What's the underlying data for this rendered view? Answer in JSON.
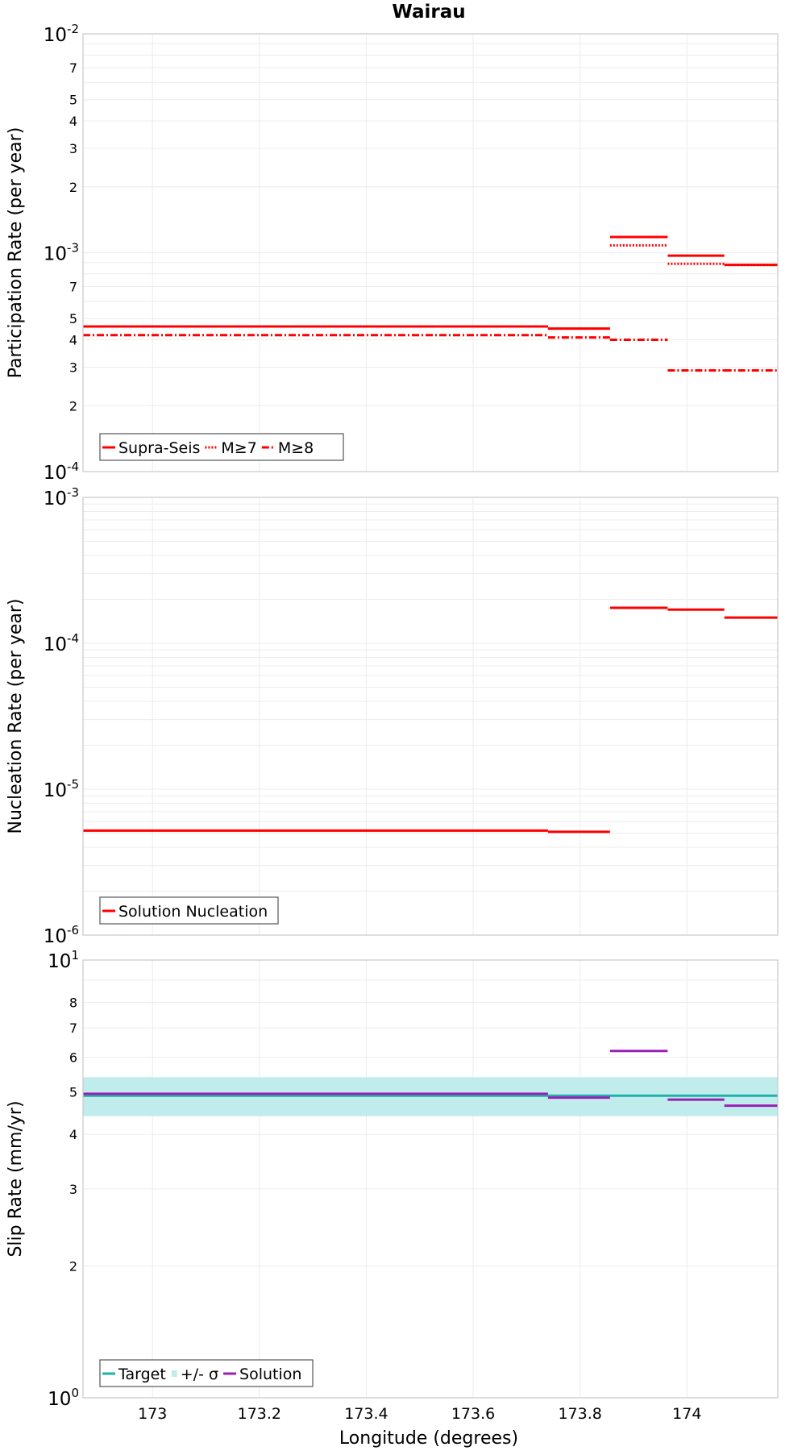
{
  "colors": {
    "participation": "#ff0000",
    "nucleation": "#ff0000",
    "target": "#20b2aa",
    "sigma_band": "#c0ecec",
    "solution": "#9b1fb4",
    "grid": "#ececec",
    "frame": "#c8c8c8"
  },
  "chart_data": [
    {
      "type": "line",
      "title": "Wairau",
      "xlabel": "",
      "ylabel": "Participation Rate (per year)",
      "xlim": [
        172.87,
        174.17
      ],
      "ylim": [
        0.0001,
        0.01
      ],
      "y_scale": "log",
      "grid": true,
      "legend_position": "bottom-left",
      "x_ticks": [
        173,
        173.2,
        173.4,
        173.6,
        173.8,
        174
      ],
      "y_ticks": [
        {
          "value": 0.0001,
          "base": "10",
          "exp": "-4"
        },
        {
          "value": 0.0002,
          "label": "2"
        },
        {
          "value": 0.0003,
          "label": "3"
        },
        {
          "value": 0.0004,
          "label": "4"
        },
        {
          "value": 0.0005,
          "label": "5"
        },
        {
          "value": 0.0007,
          "label": "7"
        },
        {
          "value": 0.001,
          "base": "10",
          "exp": "-3"
        },
        {
          "value": 0.002,
          "label": "2"
        },
        {
          "value": 0.003,
          "label": "3"
        },
        {
          "value": 0.004,
          "label": "4"
        },
        {
          "value": 0.005,
          "label": "5"
        },
        {
          "value": 0.007,
          "label": "7"
        },
        {
          "value": 0.01,
          "base": "10",
          "exp": "-2"
        }
      ],
      "series": [
        {
          "name": "Supra-Seis",
          "style": "solid",
          "segments": [
            {
              "x0": 172.87,
              "x1": 173.74,
              "y": 0.00046
            },
            {
              "x0": 173.74,
              "x1": 173.856,
              "y": 0.00045
            },
            {
              "x0": 173.856,
              "x1": 173.964,
              "y": 0.00118
            },
            {
              "x0": 173.964,
              "x1": 174.07,
              "y": 0.00097
            },
            {
              "x0": 174.07,
              "x1": 174.17,
              "y": 0.00088
            }
          ]
        },
        {
          "name": "M≥7",
          "style": "dotted",
          "segments": [
            {
              "x0": 172.87,
              "x1": 173.74,
              "y": 0.00046
            },
            {
              "x0": 173.74,
              "x1": 173.856,
              "y": 0.00045
            },
            {
              "x0": 173.856,
              "x1": 173.964,
              "y": 0.00108
            },
            {
              "x0": 173.964,
              "x1": 174.07,
              "y": 0.00089
            },
            {
              "x0": 174.07,
              "x1": 174.17,
              "y": 0.00088
            }
          ]
        },
        {
          "name": "M≥8",
          "style": "dashdot",
          "segments": [
            {
              "x0": 172.87,
              "x1": 173.74,
              "y": 0.00042
            },
            {
              "x0": 173.74,
              "x1": 173.856,
              "y": 0.00041
            },
            {
              "x0": 173.856,
              "x1": 173.964,
              "y": 0.0004
            },
            {
              "x0": 173.964,
              "x1": 174.07,
              "y": 0.00029
            },
            {
              "x0": 174.07,
              "x1": 174.17,
              "y": 0.00029
            }
          ]
        }
      ]
    },
    {
      "type": "line",
      "title": "",
      "xlabel": "",
      "ylabel": "Nucleation Rate (per year)",
      "xlim": [
        172.87,
        174.17
      ],
      "ylim": [
        1e-06,
        0.001
      ],
      "y_scale": "log",
      "grid": true,
      "legend_position": "bottom-left",
      "x_ticks": [
        173,
        173.2,
        173.4,
        173.6,
        173.8,
        174
      ],
      "y_ticks": [
        {
          "value": 1e-06,
          "base": "10",
          "exp": "-6"
        },
        {
          "value": 1e-05,
          "base": "10",
          "exp": "-5"
        },
        {
          "value": 0.0001,
          "base": "10",
          "exp": "-4"
        },
        {
          "value": 0.001,
          "base": "10",
          "exp": "-3"
        }
      ],
      "series": [
        {
          "name": "Solution Nucleation",
          "style": "solid",
          "segments": [
            {
              "x0": 172.87,
              "x1": 173.74,
              "y": 5.2e-06
            },
            {
              "x0": 173.74,
              "x1": 173.856,
              "y": 5.1e-06
            },
            {
              "x0": 173.856,
              "x1": 173.964,
              "y": 0.000175
            },
            {
              "x0": 173.964,
              "x1": 174.07,
              "y": 0.00017
            },
            {
              "x0": 174.07,
              "x1": 174.17,
              "y": 0.00015
            }
          ]
        }
      ]
    },
    {
      "type": "line",
      "title": "",
      "xlabel": "Longitude (degrees)",
      "ylabel": "Slip Rate (mm/yr)",
      "xlim": [
        172.87,
        174.17
      ],
      "ylim": [
        1,
        10
      ],
      "y_scale": "log",
      "grid": true,
      "legend_position": "bottom-left",
      "x_ticks": [
        173,
        173.2,
        173.4,
        173.6,
        173.8,
        174
      ],
      "y_ticks": [
        {
          "value": 1,
          "base": "10",
          "exp": "0"
        },
        {
          "value": 2,
          "label": "2"
        },
        {
          "value": 3,
          "label": "3"
        },
        {
          "value": 4,
          "label": "4"
        },
        {
          "value": 5,
          "label": "5"
        },
        {
          "value": 6,
          "label": "6"
        },
        {
          "value": 7,
          "label": "7"
        },
        {
          "value": 8,
          "label": "8"
        },
        {
          "value": 10,
          "base": "10",
          "exp": "1"
        }
      ],
      "band": {
        "name": "+/- σ",
        "x0": 172.87,
        "x1": 174.17,
        "y0": 4.4,
        "y1": 5.4
      },
      "series": [
        {
          "name": "Target",
          "style": "solid",
          "segments": [
            {
              "x0": 172.87,
              "x1": 174.17,
              "y": 4.9
            }
          ]
        },
        {
          "name": "Solution",
          "style": "solid",
          "segments": [
            {
              "x0": 172.87,
              "x1": 173.74,
              "y": 4.95
            },
            {
              "x0": 173.74,
              "x1": 173.856,
              "y": 4.85
            },
            {
              "x0": 173.856,
              "x1": 173.964,
              "y": 6.2
            },
            {
              "x0": 173.964,
              "x1": 174.07,
              "y": 4.8
            },
            {
              "x0": 174.07,
              "x1": 174.17,
              "y": 4.65
            }
          ]
        }
      ]
    }
  ]
}
